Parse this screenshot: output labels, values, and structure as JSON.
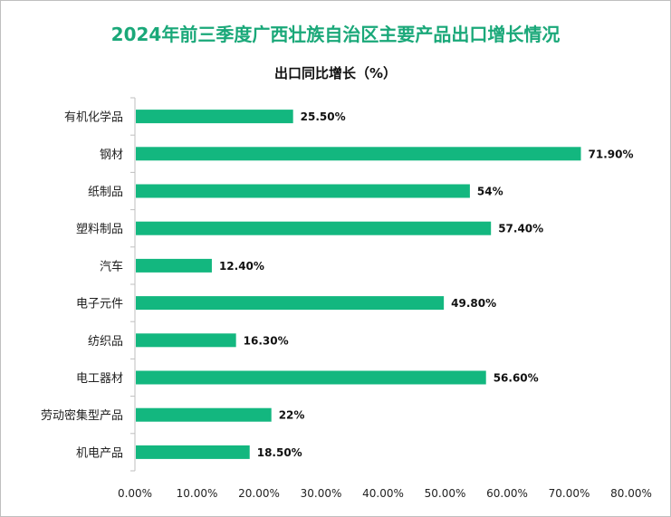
{
  "chart_data": {
    "type": "bar",
    "orientation": "horizontal",
    "title": "2024年前三季度广西壮族自治区主要产品出口增长情况",
    "series_name": "出口同比增长（%）",
    "categories": [
      "有机化学品",
      "钢材",
      "纸制品",
      "塑料制品",
      "汽车",
      "电子元件",
      "纺织品",
      "电工器材",
      "劳动密集型产品",
      "机电产品"
    ],
    "values": [
      25.5,
      71.9,
      54,
      57.4,
      12.4,
      49.8,
      16.3,
      56.6,
      22,
      18.5
    ],
    "value_labels": [
      "25.50%",
      "71.90%",
      "54%",
      "57.40%",
      "12.40%",
      "49.80%",
      "16.30%",
      "56.60%",
      "22%",
      "18.50%"
    ],
    "xlim": [
      0,
      80
    ],
    "x_ticks": [
      "0.00%",
      "10.00%",
      "20.00%",
      "30.00%",
      "40.00%",
      "50.00%",
      "60.00%",
      "70.00%",
      "80.00%"
    ],
    "grid": false,
    "legend": "none",
    "bar_color": "#13b77f"
  }
}
